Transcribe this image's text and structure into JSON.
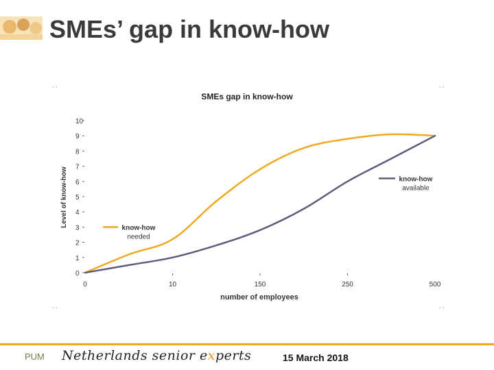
{
  "slide": {
    "title": "SMEs’ gap in know-how"
  },
  "footer": {
    "org_short": "PUM",
    "brand_pre": "Netherlands senior e",
    "brand_x": "x",
    "brand_post": "perts",
    "date": "15 March 2018"
  },
  "colors": {
    "needed": "#f0a81e",
    "available": "#5f5b7a",
    "accent": "#f0a81e"
  },
  "chart_data": {
    "type": "line",
    "title": "SMEs gap in know-how",
    "xlabel": "number of employees",
    "ylabel": "Level of know-how",
    "categories": [
      "0",
      "10",
      "150",
      "250",
      "500"
    ],
    "ylim": [
      0,
      10
    ],
    "yticks": [
      0,
      1,
      2,
      3,
      4,
      5,
      6,
      7,
      8,
      9,
      10
    ],
    "series": [
      {
        "name": "know-how needed",
        "label_lines": [
          "know-how",
          "needed"
        ],
        "color": "#f0a81e",
        "x": [
          0,
          0.5,
          1,
          1.5,
          2,
          2.5,
          3,
          3.5,
          4
        ],
        "y": [
          0,
          1.2,
          2.2,
          4.7,
          6.8,
          8.2,
          8.8,
          9.1,
          9.0
        ]
      },
      {
        "name": "know-how available",
        "label_lines": [
          "know-how",
          "available"
        ],
        "color": "#5f5b7a",
        "x": [
          0,
          0.5,
          1,
          1.5,
          2,
          2.5,
          3,
          3.5,
          4
        ],
        "y": [
          0,
          0.5,
          1.0,
          1.8,
          2.8,
          4.2,
          6.0,
          7.5,
          9.0
        ]
      }
    ]
  }
}
